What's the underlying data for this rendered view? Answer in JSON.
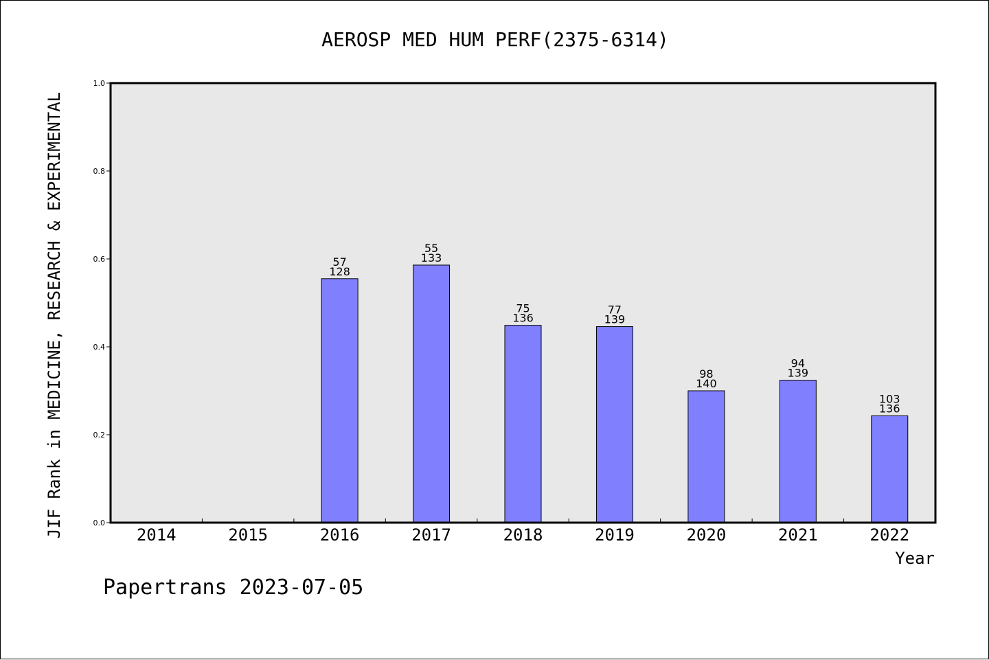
{
  "chart_data": {
    "type": "bar",
    "title": "AEROSP MED HUM PERF(2375-6314)",
    "xlabel": "Year",
    "ylabel": "JIF Rank in MEDICINE, RESEARCH & EXPERIMENTAL",
    "ylim": [
      0,
      1.0
    ],
    "yticks": [
      "0.0",
      "0.2",
      "0.4",
      "0.6",
      "0.8",
      "1.0"
    ],
    "categories": [
      "2014",
      "2015",
      "2016",
      "2017",
      "2018",
      "2019",
      "2020",
      "2021",
      "2022"
    ],
    "values": [
      null,
      null,
      0.555,
      0.586,
      0.449,
      0.446,
      0.3,
      0.324,
      0.243
    ],
    "labels": [
      null,
      null,
      {
        "rank": "57",
        "total": "128"
      },
      {
        "rank": "55",
        "total": "133"
      },
      {
        "rank": "75",
        "total": "136"
      },
      {
        "rank": "77",
        "total": "139"
      },
      {
        "rank": "98",
        "total": "140"
      },
      {
        "rank": "94",
        "total": "139"
      },
      {
        "rank": "103",
        "total": "136"
      }
    ],
    "grid": false,
    "colors": {
      "bar": "#8080ff",
      "plot_background": "#e8e8e8",
      "axes": "#000000"
    }
  },
  "footer": "Papertrans 2023-07-05"
}
